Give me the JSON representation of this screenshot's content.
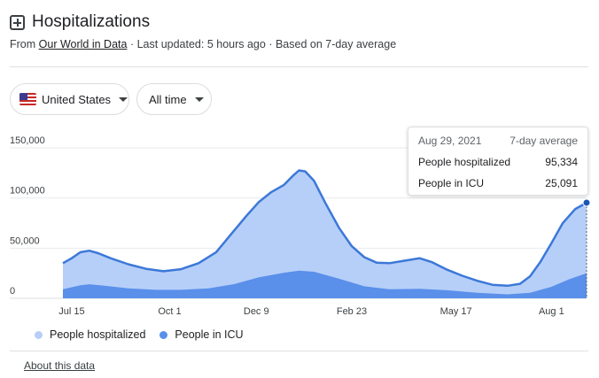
{
  "header": {
    "title": "Hospitalizations",
    "source_prefix": "From",
    "source_link": "Our World in Data",
    "source_suffix": "· Last updated: 5 hours ago · Based on 7-day average"
  },
  "filters": {
    "country": "United States",
    "range": "All time"
  },
  "tooltip": {
    "date": "Aug 29, 2021",
    "mode": "7-day average",
    "rows": [
      {
        "label": "People hospitalized",
        "value": "95,334"
      },
      {
        "label": "People in ICU",
        "value": "25,091"
      }
    ]
  },
  "legend": [
    {
      "label": "People hospitalized",
      "color": "#b6cff8"
    },
    {
      "label": "People in ICU",
      "color": "#5a8fea"
    }
  ],
  "footer": {
    "about": "About this data"
  },
  "chart_data": {
    "type": "area",
    "title": "",
    "xlabel": "",
    "ylabel": "",
    "x_range": [
      "2020-07-08",
      "2021-08-29"
    ],
    "ylim": [
      0,
      150000
    ],
    "yticks": [
      0,
      50000,
      100000,
      150000
    ],
    "ytick_labels": [
      "0",
      "50,000",
      "100,000",
      "150,000"
    ],
    "xticks": [
      "2020-07-15",
      "2020-10-01",
      "2020-12-09",
      "2021-02-23",
      "2021-05-17",
      "2021-08-01"
    ],
    "xtick_labels": [
      "Jul 15",
      "Oct 1",
      "Dec 9",
      "Feb 23",
      "May 17",
      "Aug 1"
    ],
    "grid": true,
    "legend_position": "bottom-left",
    "series": [
      {
        "name": "People hospitalized",
        "color": "#b6cff8",
        "line_color": "#3c78d8",
        "points": [
          [
            "2020-07-08",
            35000
          ],
          [
            "2020-07-15",
            40000
          ],
          [
            "2020-07-22",
            46000
          ],
          [
            "2020-07-29",
            47500
          ],
          [
            "2020-08-05",
            45000
          ],
          [
            "2020-08-15",
            40000
          ],
          [
            "2020-08-29",
            34000
          ],
          [
            "2020-09-12",
            29500
          ],
          [
            "2020-09-26",
            27000
          ],
          [
            "2020-10-10",
            29000
          ],
          [
            "2020-10-24",
            35000
          ],
          [
            "2020-11-07",
            46000
          ],
          [
            "2020-11-21",
            67000
          ],
          [
            "2020-12-01",
            82000
          ],
          [
            "2020-12-11",
            96000
          ],
          [
            "2020-12-21",
            106000
          ],
          [
            "2020-12-31",
            113000
          ],
          [
            "2021-01-07",
            122000
          ],
          [
            "2021-01-12",
            127500
          ],
          [
            "2021-01-17",
            126500
          ],
          [
            "2021-01-24",
            117000
          ],
          [
            "2021-02-02",
            95000
          ],
          [
            "2021-02-13",
            70000
          ],
          [
            "2021-02-23",
            52000
          ],
          [
            "2021-03-05",
            41000
          ],
          [
            "2021-03-15",
            35500
          ],
          [
            "2021-03-25",
            35000
          ],
          [
            "2021-04-06",
            37500
          ],
          [
            "2021-04-18",
            40000
          ],
          [
            "2021-04-28",
            36000
          ],
          [
            "2021-05-10",
            28500
          ],
          [
            "2021-05-22",
            22500
          ],
          [
            "2021-06-03",
            17500
          ],
          [
            "2021-06-15",
            13500
          ],
          [
            "2021-06-27",
            12500
          ],
          [
            "2021-07-07",
            14500
          ],
          [
            "2021-07-15",
            22000
          ],
          [
            "2021-07-23",
            36000
          ],
          [
            "2021-08-01",
            55000
          ],
          [
            "2021-08-10",
            75000
          ],
          [
            "2021-08-20",
            89000
          ],
          [
            "2021-08-29",
            95334
          ]
        ]
      },
      {
        "name": "People in ICU",
        "color": "#5a8fea",
        "points": [
          [
            "2020-07-08",
            9000
          ],
          [
            "2020-07-22",
            13000
          ],
          [
            "2020-07-29",
            14000
          ],
          [
            "2020-08-10",
            12500
          ],
          [
            "2020-08-29",
            10000
          ],
          [
            "2020-09-20",
            8500
          ],
          [
            "2020-10-10",
            8500
          ],
          [
            "2020-11-01",
            10000
          ],
          [
            "2020-11-21",
            14000
          ],
          [
            "2020-12-11",
            21000
          ],
          [
            "2020-12-31",
            25500
          ],
          [
            "2021-01-12",
            27500
          ],
          [
            "2021-01-24",
            26500
          ],
          [
            "2021-02-13",
            19500
          ],
          [
            "2021-03-05",
            12000
          ],
          [
            "2021-03-25",
            9000
          ],
          [
            "2021-04-18",
            9500
          ],
          [
            "2021-05-10",
            8000
          ],
          [
            "2021-06-03",
            5500
          ],
          [
            "2021-06-27",
            4000
          ],
          [
            "2021-07-15",
            5500
          ],
          [
            "2021-08-01",
            11500
          ],
          [
            "2021-08-15",
            19000
          ],
          [
            "2021-08-29",
            25091
          ]
        ]
      }
    ]
  }
}
